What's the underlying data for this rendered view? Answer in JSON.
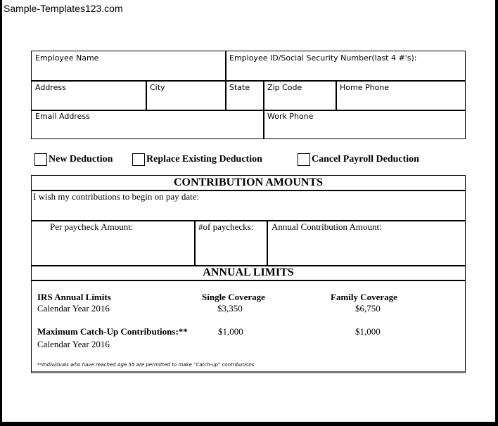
{
  "watermark": "Sample-Templates123.com",
  "employee_info": {
    "employee_name": "Employee Name",
    "employee_id": "Employee ID/Social Security Number(last 4 #'s):",
    "address": "Address",
    "city": "City",
    "state": "State",
    "zip": "Zip Code",
    "home_phone": "Home Phone",
    "email": "Email Address",
    "work_phone": "Work Phone"
  },
  "deduction_options": [
    {
      "label": "New Deduction",
      "checked": false
    },
    {
      "label": "Replace Existing Deduction",
      "checked": false
    },
    {
      "label": "Cancel Payroll Deduction",
      "checked": false
    }
  ],
  "contribution": {
    "title": "CONTRIBUTION AMOUNTS",
    "begin_date": "I wish my contributions to begin on pay date:",
    "per_paycheck": "Per paycheck Amount:",
    "num_paychecks": "#of paychecks:",
    "annual": "Annual Contribution Amount:"
  },
  "limits": {
    "title": "ANNUAL LIMITS",
    "irs": "IRS Annual Limits",
    "year1": "Calendar Year 2016",
    "single": "Single Coverage",
    "family": "Family Coverage",
    "single_val": "$3,350",
    "family_val": "$6,750",
    "catchup": "Maximum Catch-Up Contributions:**",
    "year2": "Calendar Year 2016",
    "catchup_single": "$1,000",
    "catchup_family": "$1,000",
    "note": "**Individuals who have reached Age 55 are permitted to make \"Catch-up\" contributions"
  }
}
